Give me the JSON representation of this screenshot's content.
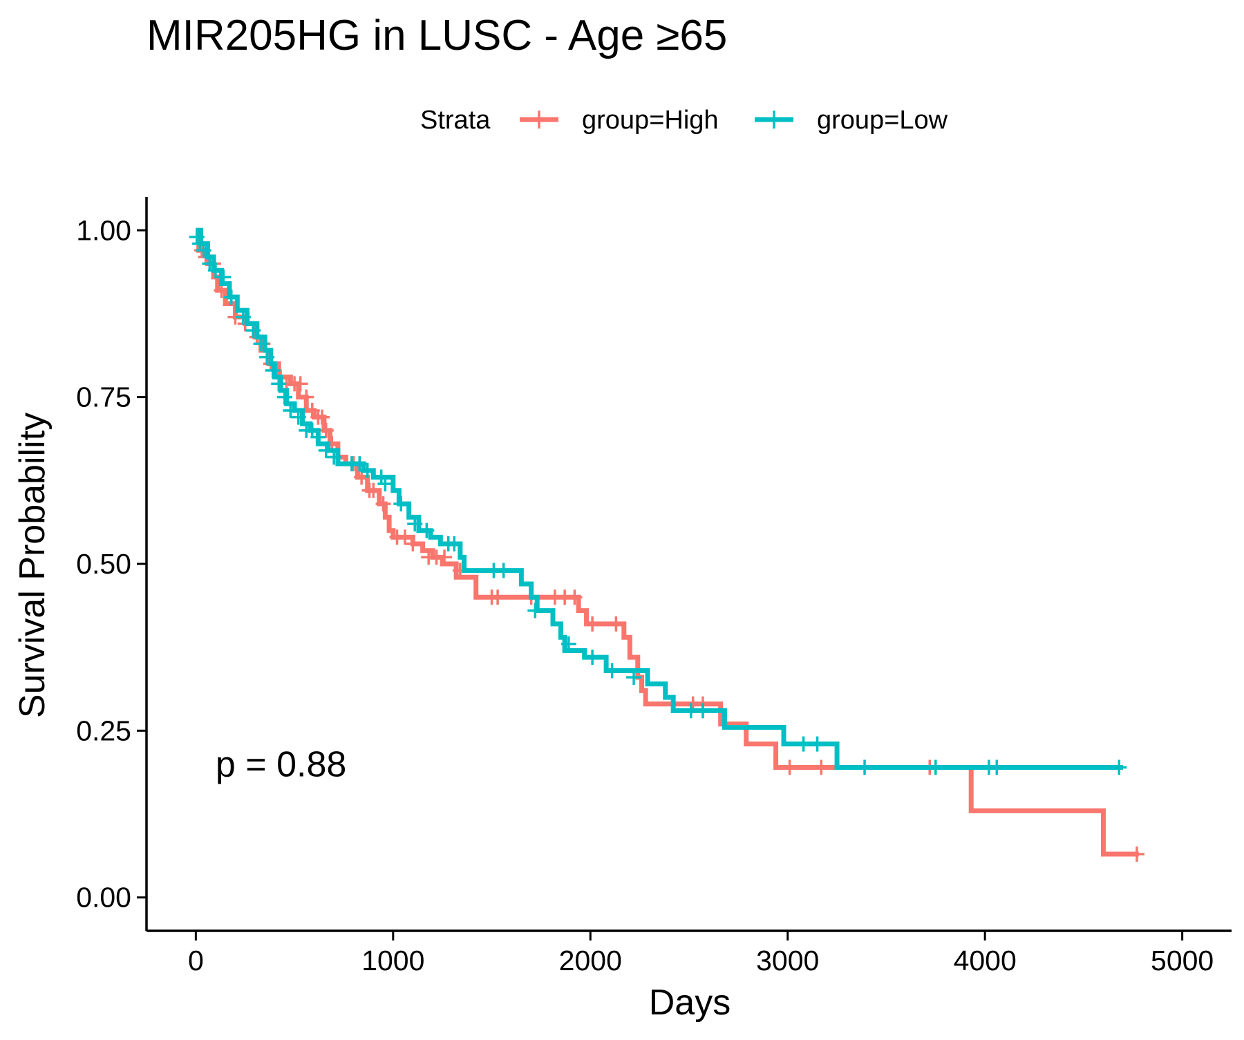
{
  "chart_data": {
    "type": "line",
    "subtype": "kaplan-meier",
    "title": "MIR205HG in LUSC - Age ≥65",
    "xlabel": "Days",
    "ylabel": "Survival Probability",
    "xlim": [
      -250,
      5250
    ],
    "ylim": [
      -0.05,
      1.05
    ],
    "x_ticks": [
      0,
      1000,
      2000,
      3000,
      4000,
      5000
    ],
    "x_tick_labels": [
      "0",
      "1000",
      "2000",
      "3000",
      "4000",
      "5000"
    ],
    "y_ticks": [
      0,
      0.25,
      0.5,
      0.75,
      1.0
    ],
    "y_tick_labels": [
      "0.00",
      "0.25",
      "0.50",
      "0.75",
      "1.00"
    ],
    "grid": false,
    "legend": {
      "title": "Strata",
      "position": "top",
      "entries": [
        "group=High",
        "group=Low"
      ]
    },
    "annotation": "p = 0.88",
    "annotation_anchor": {
      "x": 100,
      "y": 0.2
    },
    "series": [
      {
        "name": "group=High",
        "color": "#F8766D",
        "steps": [
          [
            0,
            1.0
          ],
          [
            15,
            0.97
          ],
          [
            60,
            0.95
          ],
          [
            90,
            0.93
          ],
          [
            110,
            0.91
          ],
          [
            150,
            0.89
          ],
          [
            200,
            0.87
          ],
          [
            250,
            0.86
          ],
          [
            300,
            0.84
          ],
          [
            330,
            0.82
          ],
          [
            370,
            0.8
          ],
          [
            420,
            0.78
          ],
          [
            480,
            0.77
          ],
          [
            520,
            0.75
          ],
          [
            560,
            0.73
          ],
          [
            600,
            0.72
          ],
          [
            650,
            0.7
          ],
          [
            680,
            0.68
          ],
          [
            720,
            0.66
          ],
          [
            760,
            0.65
          ],
          [
            820,
            0.63
          ],
          [
            870,
            0.61
          ],
          [
            930,
            0.59
          ],
          [
            960,
            0.57
          ],
          [
            980,
            0.55
          ],
          [
            1000,
            0.54
          ],
          [
            1100,
            0.53
          ],
          [
            1150,
            0.52
          ],
          [
            1200,
            0.51
          ],
          [
            1250,
            0.5
          ],
          [
            1320,
            0.48
          ],
          [
            1420,
            0.45
          ],
          [
            1940,
            0.43
          ],
          [
            1980,
            0.41
          ],
          [
            2170,
            0.39
          ],
          [
            2200,
            0.36
          ],
          [
            2240,
            0.33
          ],
          [
            2260,
            0.31
          ],
          [
            2280,
            0.29
          ],
          [
            2460,
            0.29
          ],
          [
            2660,
            0.26
          ],
          [
            2790,
            0.23
          ],
          [
            2940,
            0.195
          ],
          [
            3930,
            0.13
          ],
          [
            4600,
            0.065
          ],
          [
            4780,
            0.065
          ]
        ],
        "censored": [
          [
            30,
            0.97
          ],
          [
            50,
            0.96
          ],
          [
            90,
            0.95
          ],
          [
            130,
            0.91
          ],
          [
            200,
            0.87
          ],
          [
            250,
            0.86
          ],
          [
            310,
            0.84
          ],
          [
            340,
            0.83
          ],
          [
            380,
            0.8
          ],
          [
            430,
            0.78
          ],
          [
            460,
            0.77
          ],
          [
            500,
            0.77
          ],
          [
            530,
            0.77
          ],
          [
            560,
            0.75
          ],
          [
            590,
            0.73
          ],
          [
            620,
            0.72
          ],
          [
            640,
            0.72
          ],
          [
            660,
            0.7
          ],
          [
            690,
            0.68
          ],
          [
            720,
            0.66
          ],
          [
            800,
            0.65
          ],
          [
            840,
            0.63
          ],
          [
            880,
            0.61
          ],
          [
            900,
            0.61
          ],
          [
            950,
            0.59
          ],
          [
            1020,
            0.54
          ],
          [
            1060,
            0.54
          ],
          [
            1100,
            0.53
          ],
          [
            1180,
            0.51
          ],
          [
            1220,
            0.51
          ],
          [
            1260,
            0.51
          ],
          [
            1340,
            0.49
          ],
          [
            1500,
            0.45
          ],
          [
            1530,
            0.45
          ],
          [
            1700,
            0.45
          ],
          [
            1820,
            0.45
          ],
          [
            1870,
            0.45
          ],
          [
            1920,
            0.45
          ],
          [
            2010,
            0.41
          ],
          [
            2130,
            0.41
          ],
          [
            2520,
            0.29
          ],
          [
            2570,
            0.29
          ],
          [
            3010,
            0.195
          ],
          [
            3170,
            0.195
          ],
          [
            3720,
            0.195
          ],
          [
            4770,
            0.065
          ]
        ]
      },
      {
        "name": "group=Low",
        "color": "#00BFC4",
        "steps": [
          [
            0,
            1.0
          ],
          [
            25,
            0.98
          ],
          [
            60,
            0.96
          ],
          [
            90,
            0.94
          ],
          [
            130,
            0.92
          ],
          [
            170,
            0.9
          ],
          [
            210,
            0.88
          ],
          [
            260,
            0.86
          ],
          [
            310,
            0.84
          ],
          [
            350,
            0.82
          ],
          [
            380,
            0.8
          ],
          [
            400,
            0.78
          ],
          [
            430,
            0.76
          ],
          [
            460,
            0.74
          ],
          [
            500,
            0.73
          ],
          [
            540,
            0.71
          ],
          [
            580,
            0.7
          ],
          [
            620,
            0.68
          ],
          [
            670,
            0.67
          ],
          [
            720,
            0.65
          ],
          [
            850,
            0.64
          ],
          [
            900,
            0.63
          ],
          [
            1000,
            0.61
          ],
          [
            1030,
            0.59
          ],
          [
            1080,
            0.57
          ],
          [
            1130,
            0.55
          ],
          [
            1190,
            0.54
          ],
          [
            1240,
            0.53
          ],
          [
            1340,
            0.51
          ],
          [
            1360,
            0.49
          ],
          [
            1650,
            0.47
          ],
          [
            1700,
            0.45
          ],
          [
            1730,
            0.43
          ],
          [
            1810,
            0.41
          ],
          [
            1850,
            0.39
          ],
          [
            1870,
            0.37
          ],
          [
            1970,
            0.36
          ],
          [
            2080,
            0.34
          ],
          [
            2290,
            0.32
          ],
          [
            2380,
            0.3
          ],
          [
            2420,
            0.28
          ],
          [
            2680,
            0.255
          ],
          [
            2980,
            0.23
          ],
          [
            3250,
            0.195
          ],
          [
            4700,
            0.195
          ]
        ],
        "censored": [
          [
            5,
            0.99
          ],
          [
            20,
            0.98
          ],
          [
            40,
            0.97
          ],
          [
            70,
            0.95
          ],
          [
            100,
            0.94
          ],
          [
            140,
            0.93
          ],
          [
            180,
            0.9
          ],
          [
            240,
            0.87
          ],
          [
            290,
            0.85
          ],
          [
            330,
            0.83
          ],
          [
            360,
            0.81
          ],
          [
            390,
            0.79
          ],
          [
            420,
            0.77
          ],
          [
            450,
            0.75
          ],
          [
            480,
            0.73
          ],
          [
            520,
            0.72
          ],
          [
            560,
            0.7
          ],
          [
            590,
            0.7
          ],
          [
            620,
            0.69
          ],
          [
            660,
            0.67
          ],
          [
            700,
            0.66
          ],
          [
            790,
            0.65
          ],
          [
            830,
            0.65
          ],
          [
            870,
            0.64
          ],
          [
            940,
            0.63
          ],
          [
            960,
            0.62
          ],
          [
            1040,
            0.59
          ],
          [
            1110,
            0.56
          ],
          [
            1170,
            0.55
          ],
          [
            1280,
            0.53
          ],
          [
            1310,
            0.53
          ],
          [
            1510,
            0.49
          ],
          [
            1560,
            0.49
          ],
          [
            1720,
            0.43
          ],
          [
            1890,
            0.38
          ],
          [
            2010,
            0.36
          ],
          [
            2110,
            0.34
          ],
          [
            2220,
            0.33
          ],
          [
            2510,
            0.28
          ],
          [
            2570,
            0.28
          ],
          [
            3080,
            0.23
          ],
          [
            3150,
            0.23
          ],
          [
            3390,
            0.195
          ],
          [
            3750,
            0.195
          ],
          [
            4020,
            0.195
          ],
          [
            4060,
            0.195
          ],
          [
            4680,
            0.195
          ]
        ]
      }
    ]
  }
}
